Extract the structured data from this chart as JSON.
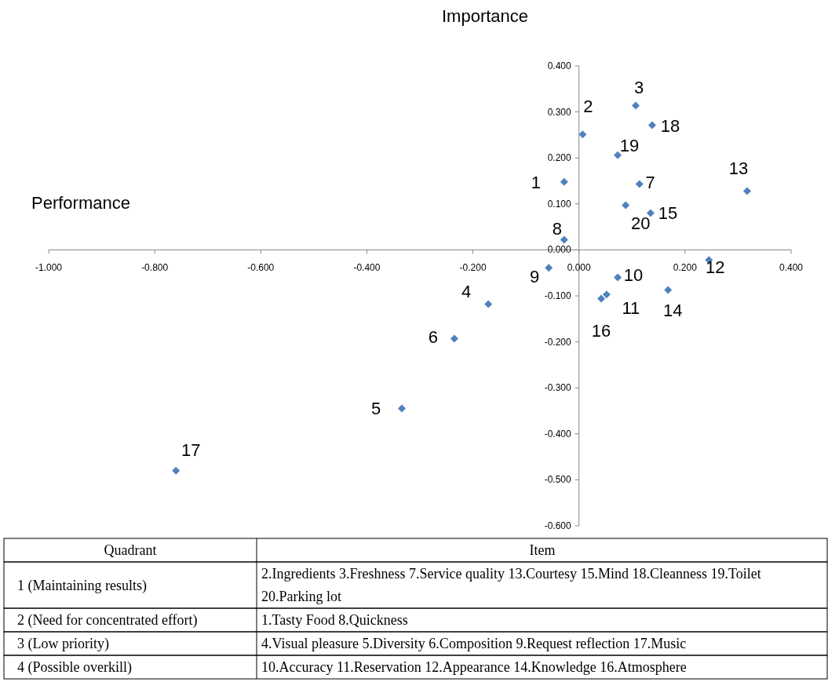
{
  "chart_data": {
    "type": "scatter",
    "xlabel": "Performance",
    "ylabel": "Importance",
    "x": [
      -0.028,
      0.007,
      0.107,
      0.138,
      0.073,
      0.114,
      0.317,
      0.088,
      0.135,
      -0.028,
      0.245,
      -0.057,
      0.073,
      0.052,
      0.042,
      0.168,
      -0.171,
      -0.235,
      -0.334,
      -0.76
    ],
    "series": [
      {
        "color": "#4f81bd",
        "values": [
          0.148,
          0.251,
          0.314,
          0.271,
          0.206,
          0.143,
          0.128,
          0.097,
          0.08,
          0.022,
          -0.022,
          -0.039,
          -0.06,
          -0.097,
          -0.106,
          -0.087,
          -0.118,
          -0.193,
          -0.345,
          -0.48
        ]
      }
    ],
    "marker": "diamond",
    "grid": false,
    "xlim": [
      -1.0,
      0.4
    ],
    "ylim": [
      -0.6,
      0.4
    ],
    "xticks": [
      {
        "value": -1.0,
        "label": "-1.000"
      },
      {
        "value": -0.8,
        "label": "-0.800"
      },
      {
        "value": -0.6,
        "label": "-0.600"
      },
      {
        "value": -0.4,
        "label": "-0.400"
      },
      {
        "value": -0.2,
        "label": "-0.200"
      },
      {
        "value": 0,
        "label": "0.000"
      },
      {
        "value": 0.2,
        "label": "0.200"
      },
      {
        "value": 0.4,
        "label": "0.400"
      }
    ],
    "yticks": [
      {
        "value": -0.6,
        "label": "-0.600"
      },
      {
        "value": -0.5,
        "label": "-0.500"
      },
      {
        "value": -0.4,
        "label": "-0.400"
      },
      {
        "value": -0.3,
        "label": "-0.300"
      },
      {
        "value": -0.2,
        "label": "-0.200"
      },
      {
        "value": -0.1,
        "label": "-0.100"
      },
      {
        "value": 0,
        "label": "0.000"
      },
      {
        "value": 0.1,
        "label": "0.100"
      },
      {
        "value": 0.2,
        "label": "0.200"
      },
      {
        "value": 0.3,
        "label": "0.300"
      },
      {
        "value": 0.4,
        "label": "0.400"
      }
    ],
    "annotations": [
      {
        "text": "1",
        "x": -0.028,
        "y": 0.148
      },
      {
        "text": "2",
        "x": 0.007,
        "y": 0.251
      },
      {
        "text": "3",
        "x": 0.107,
        "y": 0.314
      },
      {
        "text": "18",
        "x": 0.138,
        "y": 0.271
      },
      {
        "text": "19",
        "x": 0.073,
        "y": 0.206
      },
      {
        "text": "7",
        "x": 0.114,
        "y": 0.143
      },
      {
        "text": "13",
        "x": 0.317,
        "y": 0.128
      },
      {
        "text": "20",
        "x": 0.088,
        "y": 0.097
      },
      {
        "text": "15",
        "x": 0.135,
        "y": 0.08
      },
      {
        "text": "8",
        "x": -0.028,
        "y": 0.022
      },
      {
        "text": "12",
        "x": 0.245,
        "y": -0.022
      },
      {
        "text": "9",
        "x": -0.057,
        "y": -0.039
      },
      {
        "text": "10",
        "x": 0.073,
        "y": -0.06
      },
      {
        "text": "11",
        "x": 0.052,
        "y": -0.097
      },
      {
        "text": "16",
        "x": 0.042,
        "y": -0.106
      },
      {
        "text": "14",
        "x": 0.168,
        "y": -0.087
      },
      {
        "text": "4",
        "x": -0.171,
        "y": -0.118
      },
      {
        "text": "6",
        "x": -0.235,
        "y": -0.193
      },
      {
        "text": "5",
        "x": -0.334,
        "y": -0.345
      },
      {
        "text": "17",
        "x": -0.76,
        "y": -0.48
      },
      "Quadrant",
      "Item",
      "1 (Maintaining results)",
      "2.Ingredients 3.Freshness 7.Service quality 13.Courtesy 15.Mind 18.Cleanness 19.Toilet 20.Parking lot",
      "2 (Need for concentrated effort)",
      "1.Tasty Food 8.Quickness",
      "3 (Low priority)",
      "4.Visual pleasure 5.Diversity 6.Composition 9.Request reflection 17.Music",
      "4 (Possible overkill)",
      "10.Accuracy 11.Reservation 12.Appearance 14.Knowledge 16.Atmosphere"
    ]
  }
}
